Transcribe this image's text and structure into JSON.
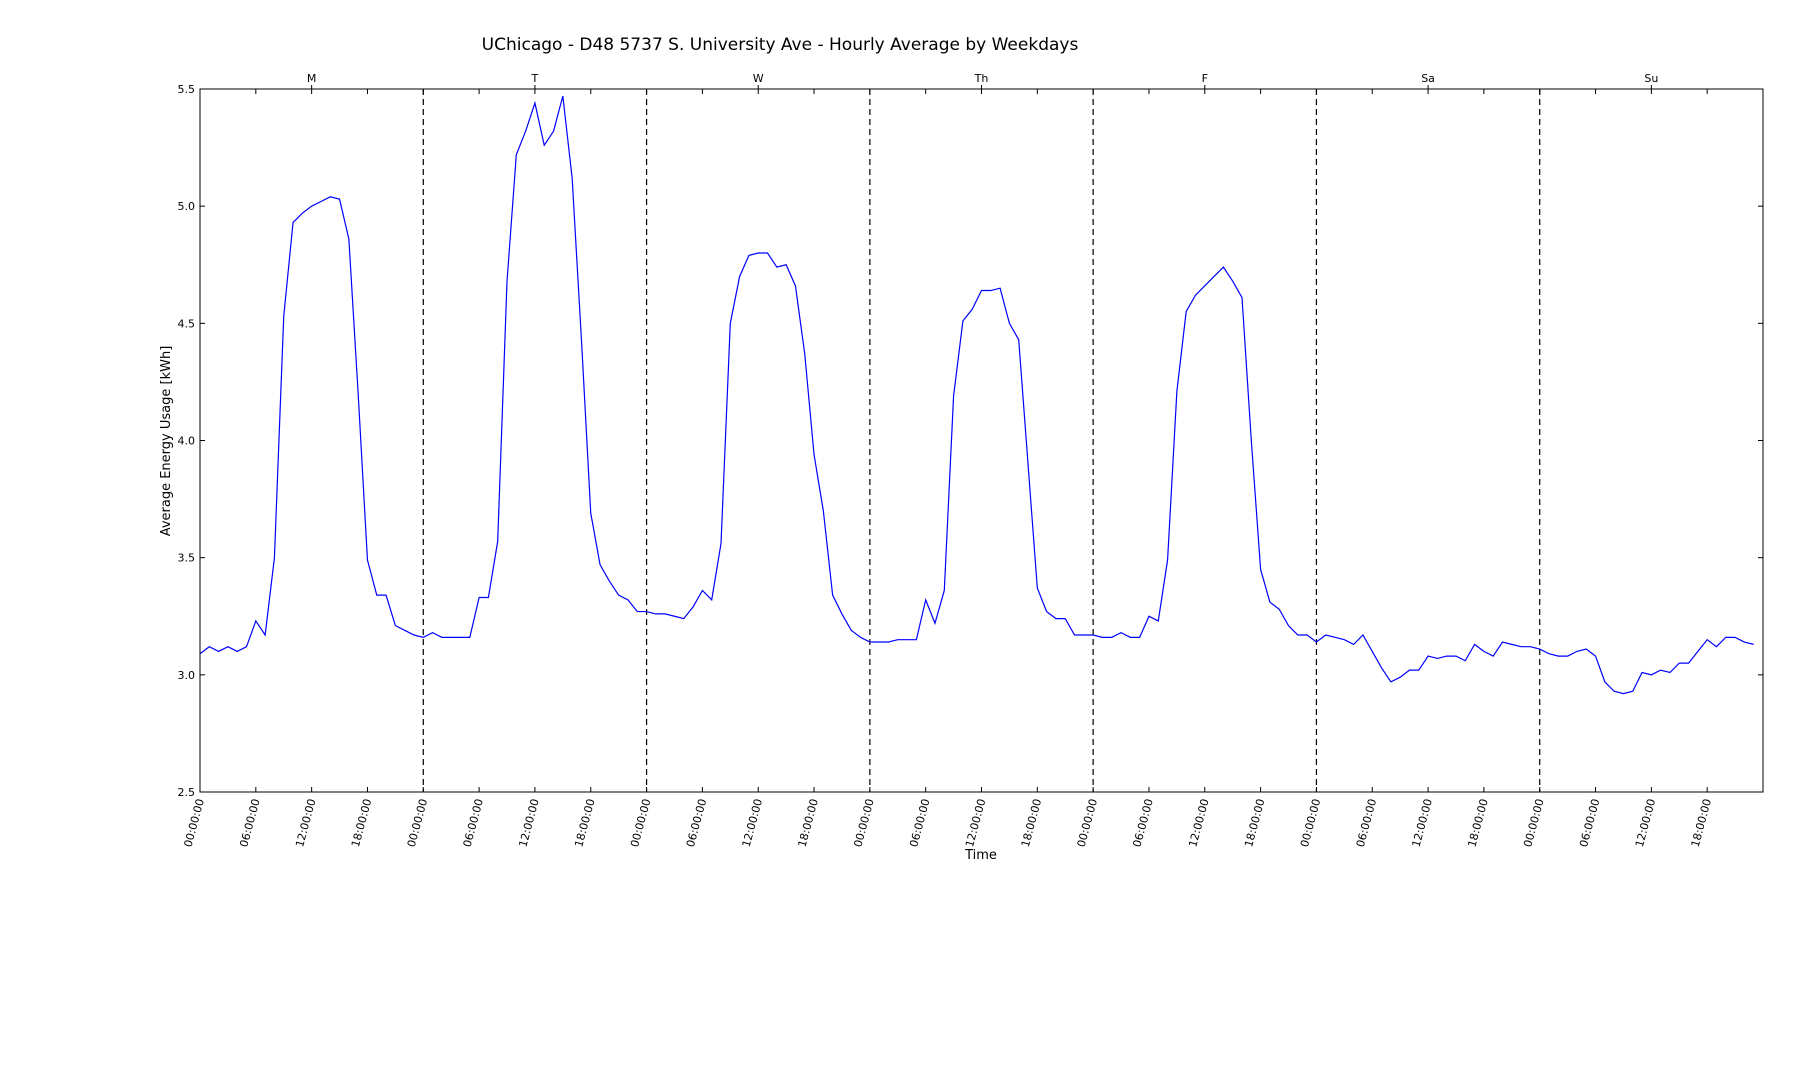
{
  "chart_data": {
    "type": "line",
    "title": "UChicago - D48 5737 S. University Ave - Hourly Average by Weekdays",
    "xlabel": "Time",
    "ylabel": "Average Energy Usage [kWh]",
    "ylim": [
      2.5,
      5.5
    ],
    "yticks": [
      "2.5",
      "3.0",
      "3.5",
      "4.0",
      "4.5",
      "5.0",
      "5.5"
    ],
    "xtick_labels": [
      "00:00:00",
      "06:00:00",
      "12:00:00",
      "18:00:00"
    ],
    "days": [
      "M",
      "T",
      "W",
      "Th",
      "F",
      "Sa",
      "Su"
    ],
    "grid": false,
    "series_color": "#0000ff",
    "separator_color": "#000000",
    "series": [
      {
        "values": [
          3.09,
          3.12,
          3.1,
          3.12,
          3.1,
          3.12,
          3.23,
          3.17,
          3.5,
          4.53,
          4.93,
          4.97,
          5.0,
          5.02,
          5.04,
          5.03,
          4.86,
          4.2,
          3.49,
          3.34,
          3.34,
          3.21,
          3.19,
          3.17,
          3.16,
          3.18,
          3.16,
          3.16,
          3.16,
          3.16,
          3.33,
          3.33,
          3.57,
          4.68,
          5.22,
          5.32,
          5.44,
          5.26,
          5.32,
          5.47,
          5.12,
          4.43,
          3.69,
          3.47,
          3.4,
          3.34,
          3.32,
          3.27,
          3.27,
          3.26,
          3.26,
          3.25,
          3.24,
          3.29,
          3.36,
          3.32,
          3.56,
          4.5,
          4.7,
          4.79,
          4.8,
          4.8,
          4.74,
          4.75,
          4.66,
          4.37,
          3.94,
          3.7,
          3.34,
          3.26,
          3.19,
          3.16,
          3.14,
          3.14,
          3.14,
          3.15,
          3.15,
          3.15,
          3.32,
          3.22,
          3.36,
          4.19,
          4.51,
          4.56,
          4.64,
          4.64,
          4.65,
          4.5,
          4.43,
          3.9,
          3.37,
          3.27,
          3.24,
          3.24,
          3.17,
          3.17,
          3.17,
          3.16,
          3.16,
          3.18,
          3.16,
          3.16,
          3.25,
          3.23,
          3.49,
          4.21,
          4.55,
          4.62,
          4.66,
          4.7,
          4.74,
          4.68,
          4.61,
          4.0,
          3.45,
          3.31,
          3.28,
          3.21,
          3.17,
          3.17,
          3.14,
          3.17,
          3.16,
          3.15,
          3.13,
          3.17,
          3.1,
          3.03,
          2.97,
          2.99,
          3.02,
          3.02,
          3.08,
          3.07,
          3.08,
          3.08,
          3.06,
          3.13,
          3.1,
          3.08,
          3.14,
          3.13,
          3.12,
          3.12,
          3.11,
          3.09,
          3.08,
          3.08,
          3.1,
          3.11,
          3.08,
          2.97,
          2.93,
          2.92,
          2.93,
          3.01,
          3.0,
          3.02,
          3.01,
          3.05,
          3.05,
          3.1,
          3.15,
          3.12,
          3.16,
          3.16,
          3.14,
          3.13
        ]
      }
    ]
  }
}
